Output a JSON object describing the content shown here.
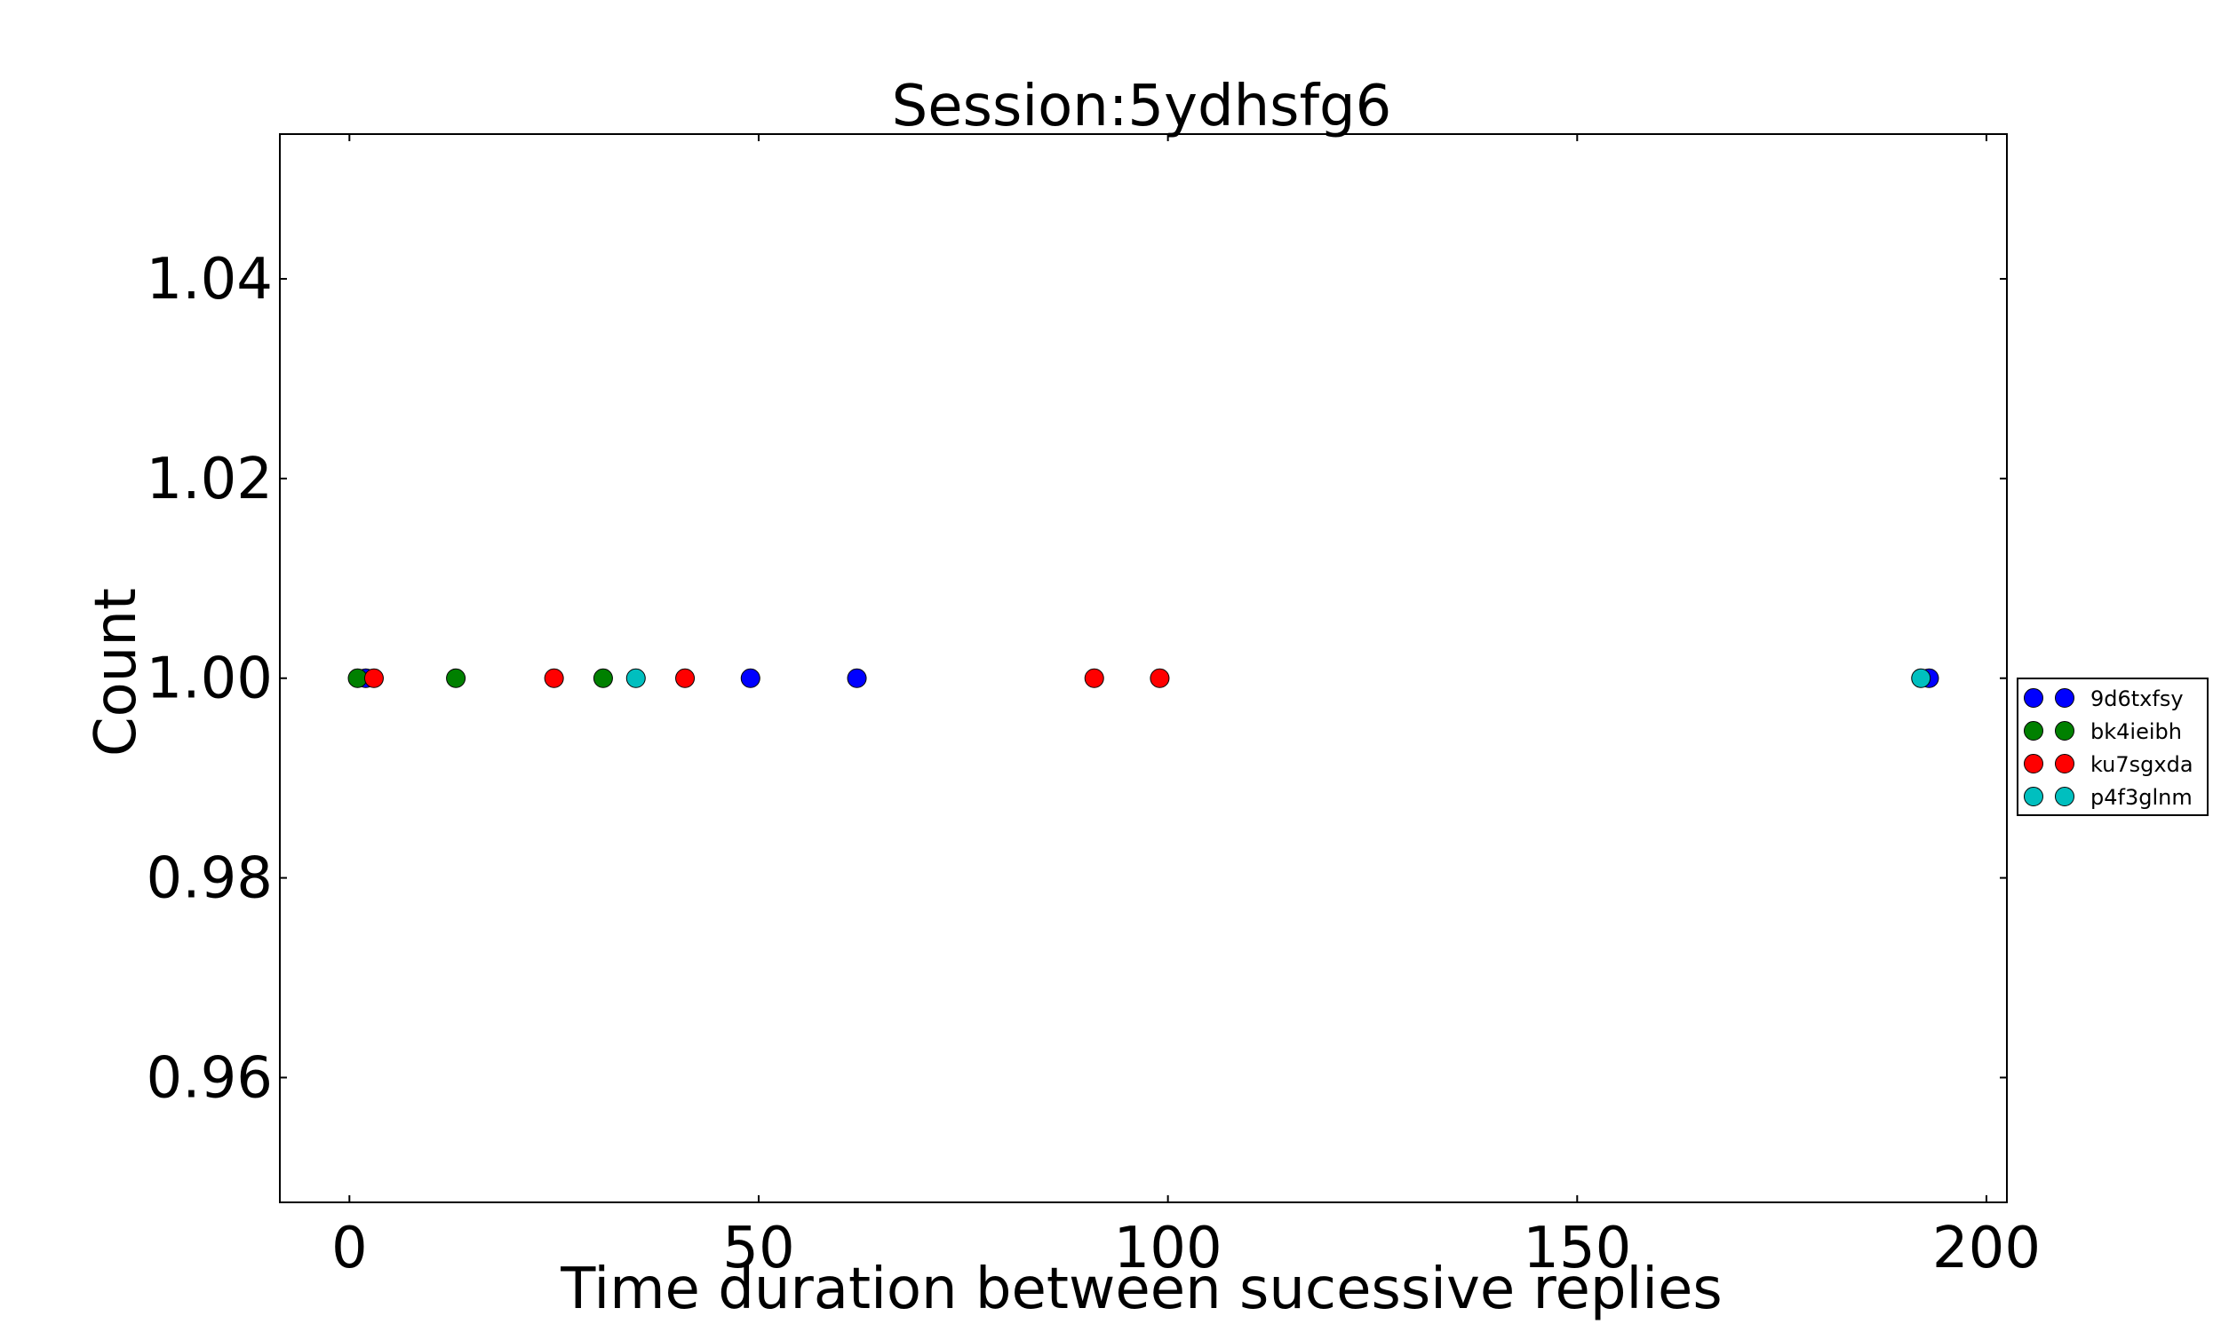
{
  "chart_data": {
    "type": "scatter",
    "title": "Session:5ydhsfg6",
    "xlabel": "Time duration between sucessive replies",
    "ylabel": "Count",
    "xlim": [
      -8.5,
      202.5
    ],
    "ylim": [
      0.9475,
      1.0545
    ],
    "x_ticks": [
      0,
      50,
      100,
      150,
      200
    ],
    "x_tick_labels": [
      "0",
      "50",
      "100",
      "150",
      "200"
    ],
    "y_ticks": [
      0.96,
      0.98,
      1.0,
      1.02,
      1.04
    ],
    "y_tick_labels": [
      "0.96",
      "0.98",
      "1.00",
      "1.02",
      "1.04"
    ],
    "grid": false,
    "legend_position": "outside-right",
    "series": [
      {
        "name": "9d6txfsy",
        "color": "#0000ff",
        "points": [
          [
            2,
            1.0
          ],
          [
            49,
            1.0
          ],
          [
            62,
            1.0
          ],
          [
            193,
            1.0
          ]
        ]
      },
      {
        "name": "bk4ieibh",
        "color": "#008000",
        "points": [
          [
            1,
            1.0
          ],
          [
            13,
            1.0
          ],
          [
            31,
            1.0
          ]
        ]
      },
      {
        "name": "ku7sgxda",
        "color": "#ff0000",
        "points": [
          [
            3,
            1.0
          ],
          [
            25,
            1.0
          ],
          [
            41,
            1.0
          ],
          [
            91,
            1.0
          ],
          [
            99,
            1.0
          ]
        ]
      },
      {
        "name": "p4f3glnm",
        "color": "#00bfbf",
        "points": [
          [
            35,
            1.0
          ],
          [
            192,
            1.0
          ]
        ]
      }
    ]
  }
}
